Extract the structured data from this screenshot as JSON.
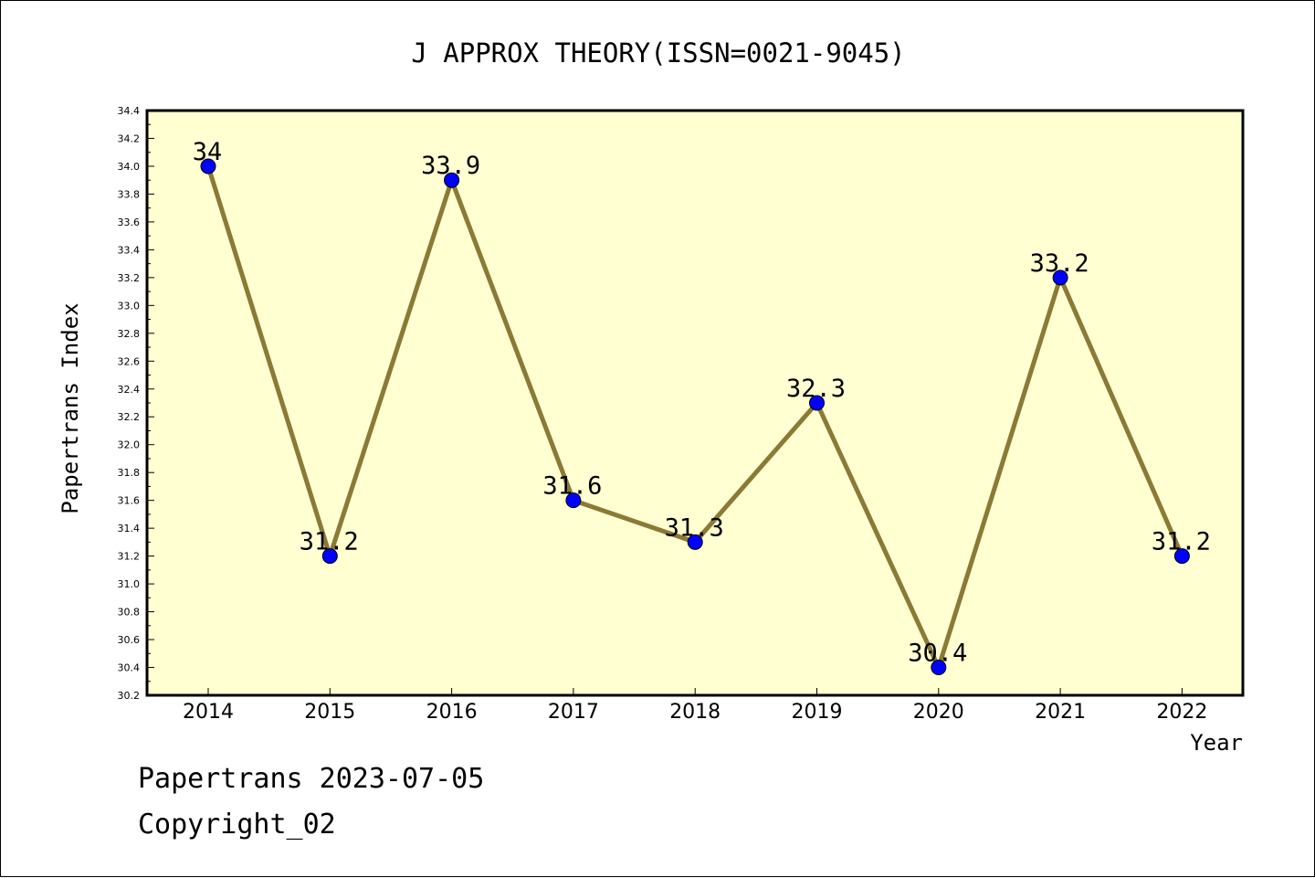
{
  "chart_data": {
    "type": "line",
    "title": "J APPROX THEORY(ISSN=0021-9045)",
    "xlabel": "Year",
    "ylabel": "Papertrans Index",
    "categories": [
      "2014",
      "2015",
      "2016",
      "2017",
      "2018",
      "2019",
      "2020",
      "2021",
      "2022"
    ],
    "series": [
      {
        "values": [
          34.0,
          31.2,
          33.9,
          31.6,
          31.3,
          32.3,
          30.4,
          33.2,
          31.2
        ],
        "data_labels": [
          "34",
          "31.2",
          "33.9",
          "31.6",
          "31.3",
          "32.3",
          "30.4",
          "33.2",
          "31.2"
        ],
        "line_color": "#8b7a35",
        "marker_color": "#0000ff"
      }
    ],
    "ylim": [
      30.2,
      34.4
    ],
    "y_ticks": [
      "30.2",
      "30.4",
      "30.6",
      "30.8",
      "31.0",
      "31.2",
      "31.4",
      "31.6",
      "31.8",
      "32.0",
      "32.2",
      "32.4",
      "32.6",
      "32.8",
      "33.0",
      "33.2",
      "33.4",
      "33.6",
      "33.8",
      "34.0",
      "34.2",
      "34.4"
    ],
    "grid": false,
    "legend": "none",
    "plot_background": "#ffffd2"
  },
  "footer": {
    "line1": "Papertrans 2023-07-05",
    "line2": "Copyright_02"
  }
}
